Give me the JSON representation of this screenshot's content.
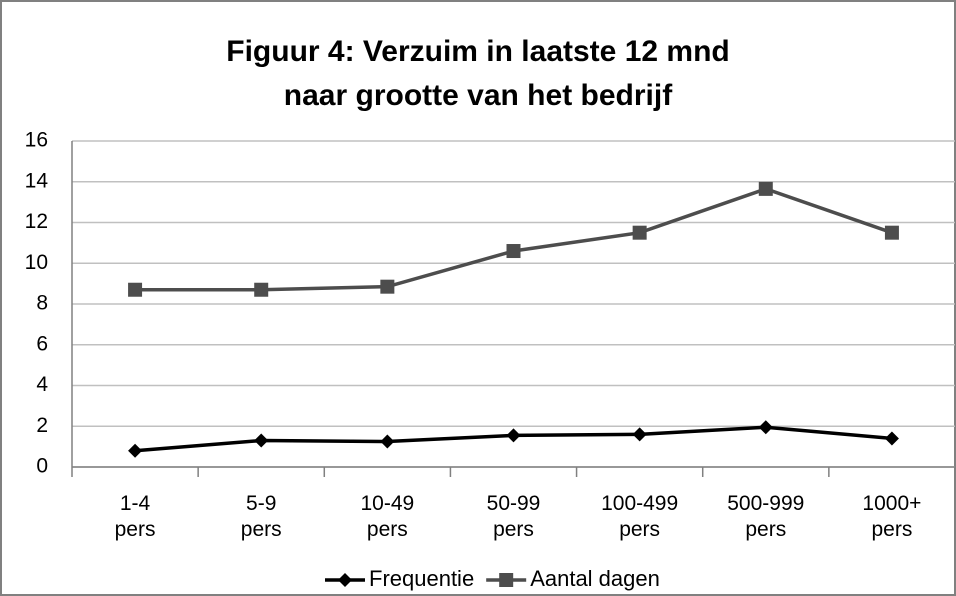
{
  "chart_data": {
    "type": "line",
    "title": "Figuur 4: Verzuim in laatste 12 mnd\nnaar grootte van het bedrijf",
    "categories": [
      "1-4\npers",
      "5-9\npers",
      "10-49\npers",
      "50-99\npers",
      "100-499\npers",
      "500-999\npers",
      "1000+\npers"
    ],
    "series": [
      {
        "name": "Frequentie",
        "color": "#000000",
        "marker": "diamond",
        "values": [
          0.8,
          1.3,
          1.25,
          1.55,
          1.6,
          1.95,
          1.4
        ]
      },
      {
        "name": "Aantal dagen",
        "color": "#4d4d4d",
        "marker": "square",
        "values": [
          8.7,
          8.7,
          8.85,
          10.6,
          11.5,
          13.65,
          11.5
        ]
      }
    ],
    "ylim": [
      0,
      16
    ],
    "yticks": [
      0,
      2,
      4,
      6,
      8,
      10,
      12,
      14,
      16
    ],
    "grid": true,
    "legend": "bottom"
  }
}
